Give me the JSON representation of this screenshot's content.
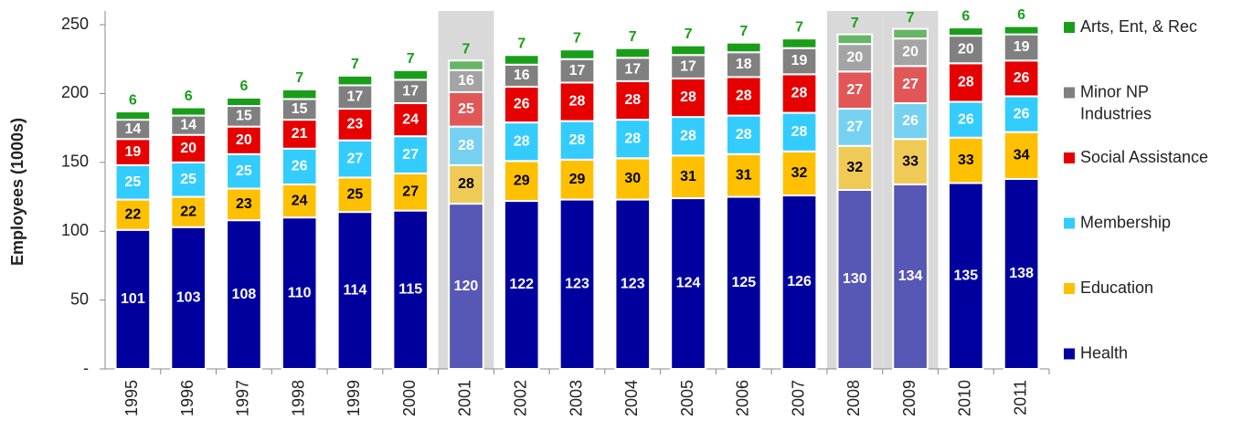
{
  "chart_data": {
    "type": "stacked_bar",
    "y_label": "Employees (1000s)",
    "categories": [
      "1995",
      "1996",
      "1997",
      "1998",
      "1999",
      "2000",
      "2001",
      "2002",
      "2003",
      "2004",
      "2005",
      "2006",
      "2007",
      "2008",
      "2009",
      "2010",
      "2011"
    ],
    "series": [
      {
        "name": "Health",
        "color": "#00009f",
        "label_color": "#ffffff",
        "values": [
          101,
          103,
          108,
          110,
          114,
          115,
          120,
          122,
          123,
          123,
          124,
          125,
          126,
          130,
          134,
          135,
          138
        ]
      },
      {
        "name": "Education",
        "color": "#ffc000",
        "label_color": "#000000",
        "values": [
          22,
          22,
          23,
          24,
          25,
          27,
          28,
          29,
          29,
          30,
          31,
          31,
          32,
          32,
          33,
          33,
          34
        ]
      },
      {
        "name": "Membership",
        "color": "#33ccff",
        "label_color": "#ffffff",
        "values": [
          25,
          25,
          25,
          26,
          27,
          27,
          28,
          28,
          28,
          28,
          28,
          28,
          28,
          27,
          26,
          26,
          26
        ]
      },
      {
        "name": "Social Assistance",
        "color": "#e60000",
        "label_color": "#ffffff",
        "values": [
          19,
          20,
          20,
          21,
          23,
          24,
          25,
          26,
          28,
          28,
          28,
          28,
          28,
          27,
          27,
          28,
          26
        ]
      },
      {
        "name": "Minor NP Industries",
        "color": "#808080",
        "label_color": "#ffffff",
        "values": [
          14,
          14,
          15,
          15,
          17,
          17,
          16,
          16,
          17,
          17,
          17,
          18,
          19,
          20,
          20,
          20,
          19
        ]
      },
      {
        "name": "Arts, Ent, & Rec",
        "color": "#1a9e1a",
        "label_color": "#1a9e1a",
        "label_above": true,
        "values": [
          6,
          6,
          6,
          7,
          7,
          7,
          7,
          7,
          7,
          7,
          7,
          7,
          7,
          7,
          7,
          6,
          6
        ]
      }
    ],
    "shaded_indices": [
      6,
      13,
      14
    ],
    "shade_color": "#d9d9d9",
    "ylim": [
      0,
      260
    ],
    "yticks": [
      {
        "value": 0,
        "label": "-"
      },
      50,
      100,
      150,
      200,
      250
    ],
    "grid": false,
    "legend": "right"
  }
}
